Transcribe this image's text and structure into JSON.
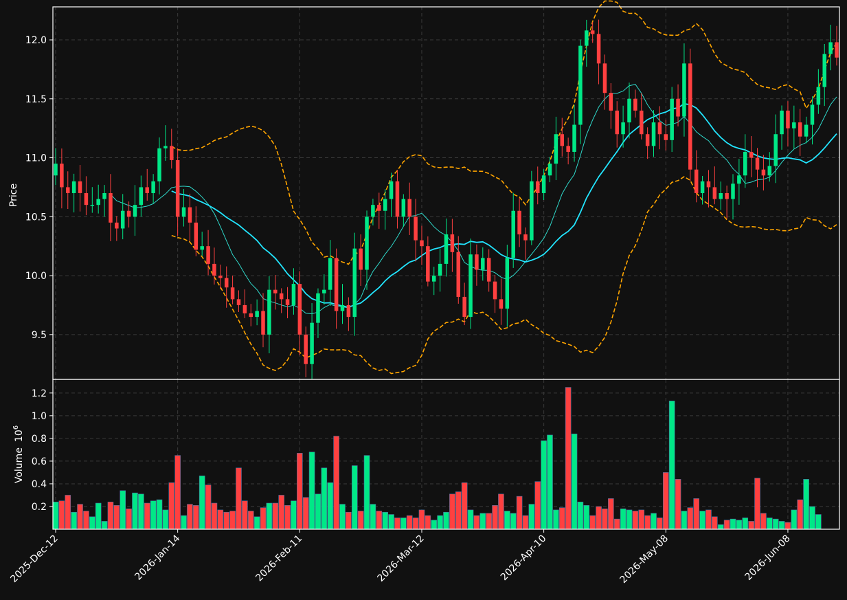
{
  "chart_data": {
    "type": "candlestick",
    "price_panel": {
      "ylabel": "Price",
      "ylim": [
        9.12,
        12.28
      ],
      "yticks": [
        9.5,
        10.0,
        10.5,
        11.0,
        11.5,
        12.0
      ],
      "ytick_labels": [
        "9.5",
        "10.0",
        "10.5",
        "11.0",
        "11.5",
        "12.0"
      ],
      "grid": true
    },
    "volume_panel": {
      "ylabel": "Volume",
      "exponent_label": "10",
      "exponent_power": "6",
      "ylim": [
        0,
        1.32
      ],
      "yticks": [
        0.2,
        0.4,
        0.6,
        0.8,
        1.0,
        1.2
      ],
      "ytick_labels": [
        "0.2",
        "0.4",
        "0.6",
        "0.8",
        "1.0",
        "1.2"
      ],
      "grid": true
    },
    "xtick_indices": [
      0,
      20,
      40,
      60,
      80,
      100,
      120
    ],
    "xtick_labels": [
      "2025-Dec-12",
      "2026-Jan-14",
      "2026-Feb-11",
      "2026-Mar-12",
      "2026-Apr-10",
      "2026-May-08",
      "2026-Jun-08"
    ],
    "colors": {
      "background": "#111111",
      "up": "#00e887",
      "down": "#ff4040",
      "ma_slow": "#22e5ff",
      "ma_fast": "#2fd7c9",
      "bollinger": "#ffa500",
      "grid": "#3a3a3a",
      "frame": "#ffffff"
    },
    "series": [
      {
        "name": "Close",
        "values": [
          10.95,
          10.75,
          10.7,
          10.8,
          10.7,
          10.6,
          10.6,
          10.65,
          10.7,
          10.45,
          10.4,
          10.55,
          10.5,
          10.6,
          10.75,
          10.7,
          10.8,
          11.08,
          11.1,
          10.98,
          10.5,
          10.58,
          10.45,
          10.22,
          10.25,
          10.1,
          10.0,
          9.98,
          9.9,
          9.8,
          9.75,
          9.68,
          9.65,
          9.7,
          9.5,
          9.88,
          9.85,
          9.8,
          9.75,
          9.93,
          9.5,
          9.25,
          9.6,
          9.85,
          9.88,
          10.15,
          9.7,
          9.75,
          9.65,
          10.23,
          10.05,
          10.5,
          10.6,
          10.55,
          10.65,
          10.8,
          10.5,
          10.65,
          10.5,
          10.3,
          10.25,
          9.95,
          10.0,
          10.1,
          10.35,
          10.2,
          9.82,
          9.65,
          10.18,
          10.05,
          10.15,
          9.95,
          9.8,
          9.72,
          10.15,
          10.55,
          10.35,
          10.3,
          10.8,
          10.7,
          10.85,
          10.95,
          11.2,
          11.1,
          11.05,
          11.28,
          11.95,
          12.08,
          12.05,
          11.8,
          11.55,
          11.4,
          11.2,
          11.3,
          11.5,
          11.4,
          11.2,
          11.1,
          11.3,
          11.2,
          11.15,
          11.5,
          11.35,
          11.8,
          10.9,
          10.7,
          10.8,
          10.75,
          10.65,
          10.7,
          10.65,
          10.78,
          10.85,
          11.05,
          11.0,
          10.9,
          10.85,
          10.93,
          11.2,
          11.4,
          11.25,
          11.3,
          11.18,
          11.28,
          11.45,
          11.6,
          11.88,
          11.98,
          11.85
        ]
      },
      {
        "name": "Volume",
        "values": [
          0.24,
          0.25,
          0.3,
          0.15,
          0.22,
          0.16,
          0.11,
          0.23,
          0.07,
          0.24,
          0.21,
          0.34,
          0.18,
          0.32,
          0.31,
          0.23,
          0.25,
          0.26,
          0.17,
          0.41,
          0.65,
          0.12,
          0.22,
          0.21,
          0.47,
          0.39,
          0.23,
          0.17,
          0.15,
          0.16,
          0.54,
          0.25,
          0.16,
          0.11,
          0.19,
          0.23,
          0.23,
          0.3,
          0.21,
          0.25,
          0.67,
          0.28,
          0.68,
          0.31,
          0.54,
          0.41,
          0.82,
          0.22,
          0.15,
          0.56,
          0.16,
          0.65,
          0.22,
          0.16,
          0.15,
          0.13,
          0.1,
          0.1,
          0.12,
          0.1,
          0.17,
          0.12,
          0.08,
          0.12,
          0.15,
          0.31,
          0.33,
          0.41,
          0.17,
          0.12,
          0.14,
          0.14,
          0.21,
          0.31,
          0.16,
          0.14,
          0.29,
          0.12,
          0.22,
          0.42,
          0.78,
          0.83,
          0.17,
          0.19,
          1.25,
          0.84,
          0.24,
          0.21,
          0.12,
          0.2,
          0.18,
          0.27,
          0.09,
          0.18,
          0.17,
          0.16,
          0.17,
          0.12,
          0.14,
          0.1,
          0.5,
          1.13,
          0.44,
          0.16,
          0.19,
          0.27,
          0.16,
          0.17,
          0.11,
          0.04,
          0.08,
          0.09,
          0.08,
          0.1,
          0.07,
          0.45,
          0.14,
          0.1,
          0.09,
          0.07,
          0.06,
          0.17,
          0.26,
          0.44,
          0.2,
          0.13
        ]
      }
    ]
  }
}
